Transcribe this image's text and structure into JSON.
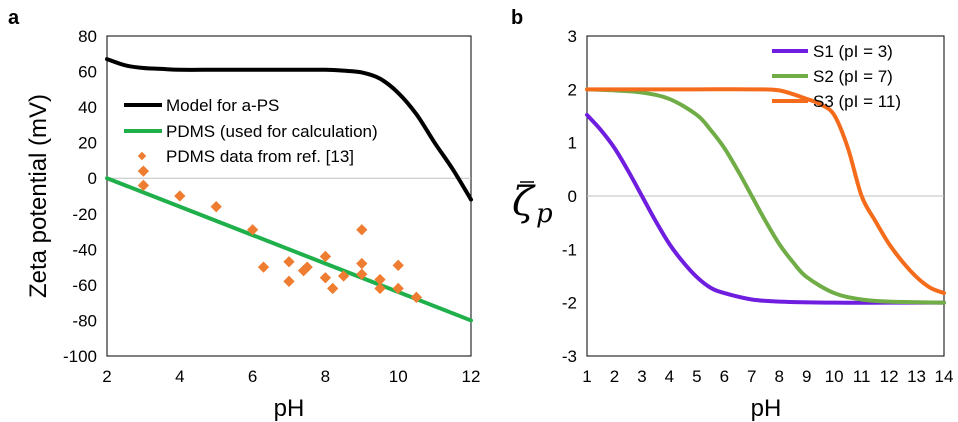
{
  "chart_data": [
    {
      "type": "scatter",
      "panel_label": "a",
      "xlabel": "pH",
      "ylabel": "Zeta potential (mV)",
      "xlim": [
        2,
        12
      ],
      "ylim": [
        -100,
        80
      ],
      "xticks": [
        "2",
        "4",
        "6",
        "8",
        "10",
        "12"
      ],
      "yticks": [
        "80",
        "60",
        "40",
        "20",
        "0",
        "-20",
        "-40",
        "-60",
        "-80",
        "-100"
      ],
      "zero_line": true,
      "legend_position": "upper-left",
      "series": [
        {
          "name": "Model for a-PS",
          "kind": "line",
          "color": "#000000",
          "x": [
            2,
            2.5,
            3,
            3.5,
            4,
            5,
            6,
            7,
            8,
            8.5,
            9,
            9.5,
            10,
            10.5,
            11,
            11.5,
            12
          ],
          "y": [
            67,
            63.5,
            62,
            61.5,
            61,
            61,
            61,
            61,
            61,
            60.5,
            59.5,
            56,
            48,
            36,
            20,
            5,
            -12
          ]
        },
        {
          "name": "PDMS (used for calculation)",
          "kind": "line",
          "color": "#1fb04b",
          "x": [
            2,
            12
          ],
          "y": [
            0,
            -80
          ]
        },
        {
          "name": "PDMS data from ref. [13]",
          "kind": "scatter",
          "color": "#ee7d31",
          "x": [
            3,
            3,
            4,
            5,
            6,
            6.3,
            7,
            7,
            7.4,
            7.5,
            8,
            8,
            8.2,
            8.5,
            9,
            9,
            9,
            9.5,
            9.5,
            10,
            10,
            10.5
          ],
          "y": [
            4,
            -4,
            -10,
            -16,
            -29,
            -50,
            -47,
            -58,
            -52,
            -50,
            -44,
            -56,
            -62,
            -55,
            -29,
            -48,
            -54,
            -57,
            -62,
            -49,
            -62,
            -67
          ]
        }
      ]
    },
    {
      "type": "line",
      "panel_label": "b",
      "xlabel": "pH",
      "ylabel_symbol": "ζ",
      "ylabel_subscript": "p",
      "xlim": [
        1,
        14
      ],
      "ylim": [
        -3,
        3
      ],
      "xticks": [
        "1",
        "2",
        "3",
        "4",
        "5",
        "6",
        "7",
        "8",
        "9",
        "10",
        "11",
        "12",
        "13",
        "14"
      ],
      "yticks": [
        "3",
        "2",
        "1",
        "0",
        "-1",
        "-2",
        "-3"
      ],
      "zero_line": true,
      "legend_position": "top-right",
      "series": [
        {
          "name": "S1 (pI = 3)",
          "color": "#6f1ee0",
          "x": [
            1,
            1.5,
            2,
            2.5,
            3,
            3.5,
            4,
            4.5,
            5,
            5.5,
            6,
            7,
            8,
            10,
            12,
            14
          ],
          "y": [
            1.52,
            1.24,
            0.9,
            0.47,
            0.0,
            -0.47,
            -0.9,
            -1.24,
            -1.52,
            -1.72,
            -1.82,
            -1.94,
            -1.98,
            -2.0,
            -2.0,
            -2.0
          ]
        },
        {
          "name": "S2 (pI = 7)",
          "color": "#70ad47",
          "x": [
            1,
            2,
            3,
            4,
            5,
            5.5,
            6,
            6.5,
            7,
            7.5,
            8,
            8.5,
            9,
            10,
            11,
            12,
            14
          ],
          "y": [
            2.0,
            1.98,
            1.94,
            1.82,
            1.52,
            1.24,
            0.9,
            0.47,
            0.0,
            -0.47,
            -0.9,
            -1.24,
            -1.52,
            -1.82,
            -1.94,
            -1.98,
            -2.0
          ]
        },
        {
          "name": "S3 (pI = 11)",
          "color": "#f46c1b",
          "x": [
            1,
            3,
            5,
            7,
            8,
            9,
            9.5,
            10,
            10.5,
            11,
            11.5,
            12,
            12.5,
            13,
            13.5,
            14
          ],
          "y": [
            2.0,
            2.0,
            2.0,
            2.0,
            1.98,
            1.82,
            1.72,
            1.52,
            0.9,
            0.0,
            -0.47,
            -0.9,
            -1.24,
            -1.52,
            -1.72,
            -1.82
          ]
        }
      ]
    }
  ]
}
